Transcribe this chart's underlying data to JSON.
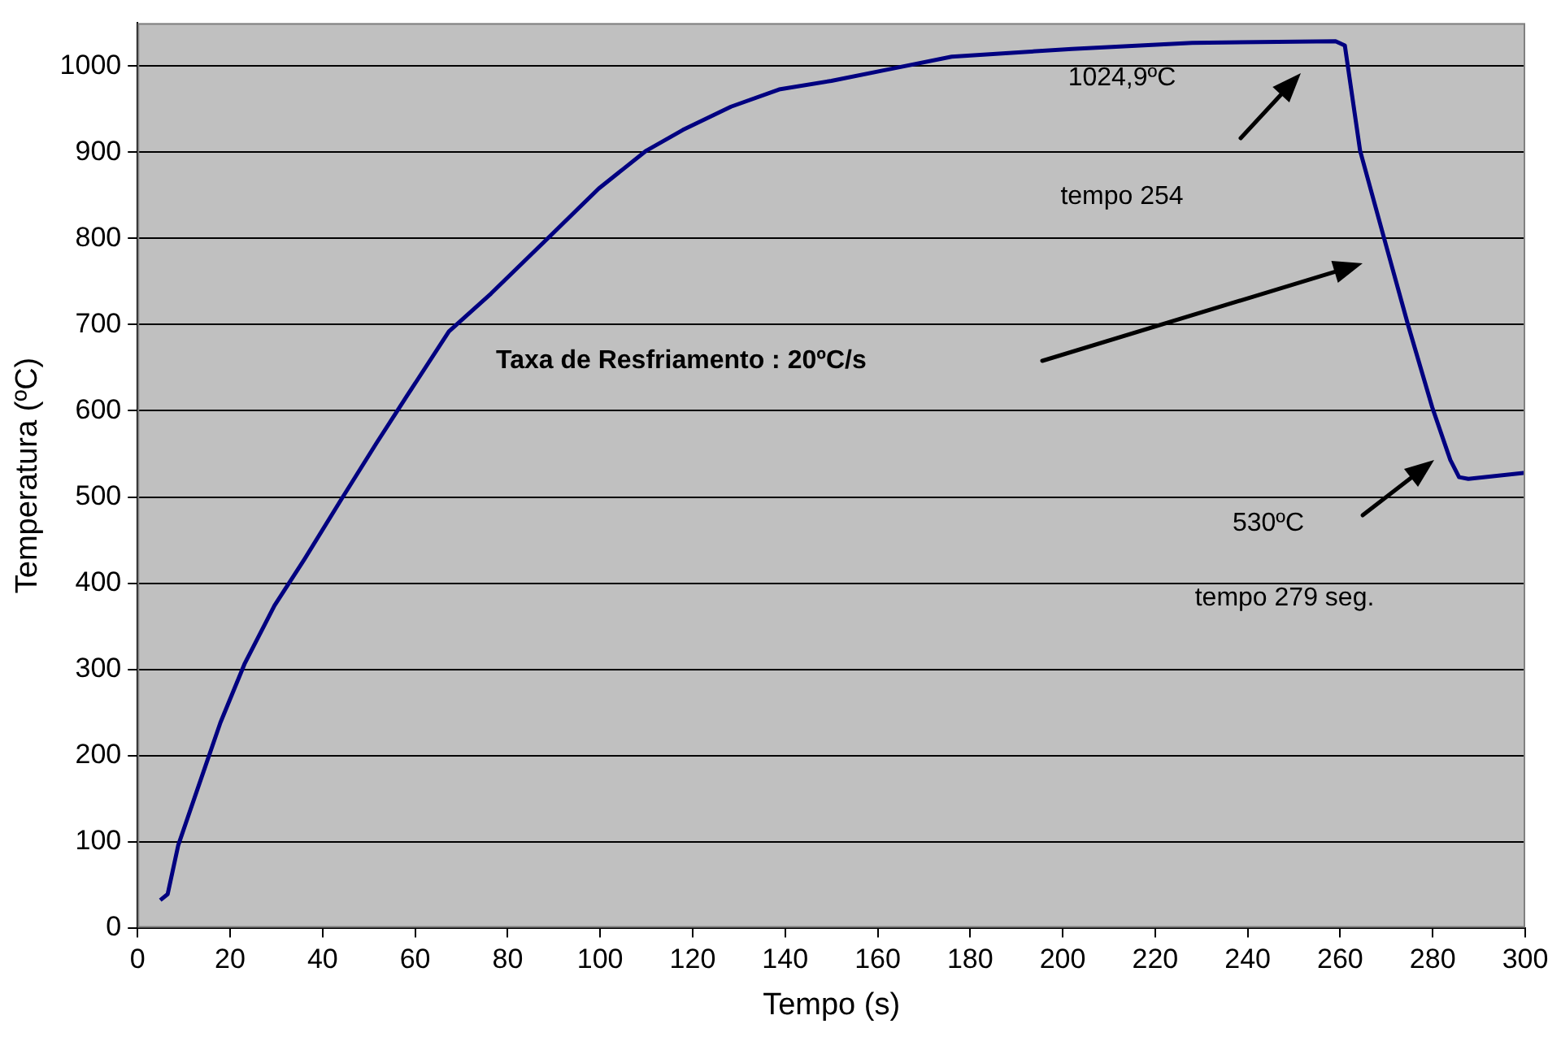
{
  "chart_data": {
    "type": "line",
    "xlabel": "Tempo (s)",
    "ylabel": "Temperatura (ºC)",
    "x": [
      4.9,
      6.5,
      8.8,
      12.7,
      17.9,
      23.1,
      29.6,
      36.1,
      43.9,
      51.7,
      58.2,
      67.3,
      76.4,
      89.4,
      99.7,
      110,
      117.9,
      128.3,
      138.7,
      150,
      163,
      176,
      202,
      228,
      259,
      261,
      264.3,
      269.5,
      274.7,
      279.9,
      283.8,
      285.7,
      287.7,
      300
    ],
    "series": [
      {
        "color": "#000080",
        "values": [
          32,
          39,
          96,
          157,
          238,
          306,
          374,
          428,
          496,
          563,
          617,
          692,
          736,
          804,
          858,
          902,
          926,
          953,
          973,
          983,
          997,
          1011,
          1020,
          1027,
          1029,
          1024,
          902,
          800,
          699,
          604,
          543,
          523,
          521,
          528
        ]
      }
    ],
    "xlim": [
      0,
      300
    ],
    "xticks": [
      0,
      20,
      40,
      60,
      80,
      100,
      120,
      140,
      160,
      180,
      200,
      220,
      240,
      260,
      280,
      300
    ],
    "ylim": [
      0,
      1050
    ],
    "yticks": [
      0,
      100,
      200,
      300,
      400,
      500,
      600,
      700,
      800,
      900,
      1000
    ],
    "grid": "y",
    "legend": false,
    "marker": "none",
    "line_style": "solid",
    "annotations": [
      "1024,9ºC",
      "tempo 254",
      "Taxa de Resfriamento : 20ºC/s",
      "530ºC",
      "tempo 279 seg."
    ]
  }
}
